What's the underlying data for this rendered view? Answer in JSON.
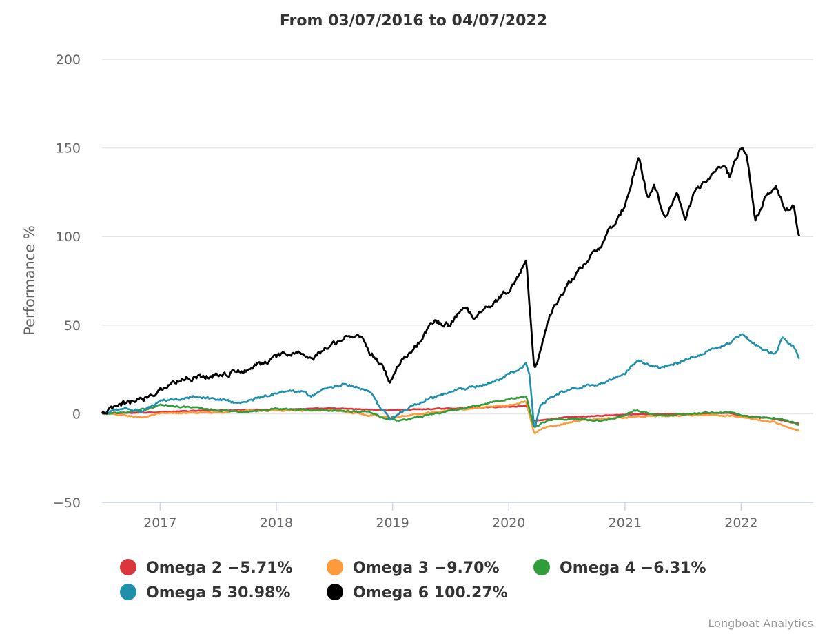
{
  "chart_data": {
    "type": "line",
    "title": "From 03/07/2016 to 04/07/2022",
    "ylabel": "Performance %",
    "xlabel": "",
    "ylim": [
      -50,
      200
    ],
    "xlim": [
      2016.5,
      2022.62
    ],
    "yticks": [
      -50,
      0,
      50,
      100,
      150,
      200
    ],
    "ytick_labels": [
      "−50",
      "0",
      "50",
      "100",
      "150",
      "200"
    ],
    "xticks": [
      2017,
      2018,
      2019,
      2020,
      2021,
      2022
    ],
    "xtick_labels": [
      "2017",
      "2018",
      "2019",
      "2020",
      "2021",
      "2022"
    ],
    "grid": "horizontal",
    "legend_position": "bottom",
    "credit": "Longboat Analytics",
    "series": [
      {
        "name": "Omega 2",
        "legend_label": "Omega 2 −5.71%",
        "color": "#d9363e",
        "points": [
          [
            2016.5,
            0
          ],
          [
            2017.0,
            1
          ],
          [
            2017.5,
            2
          ],
          [
            2018.0,
            2.5
          ],
          [
            2018.5,
            3
          ],
          [
            2018.95,
            2
          ],
          [
            2019.5,
            3
          ],
          [
            2020.0,
            4
          ],
          [
            2020.15,
            4.5
          ],
          [
            2020.22,
            -4
          ],
          [
            2020.5,
            -2
          ],
          [
            2021.0,
            -0.5
          ],
          [
            2021.5,
            0
          ],
          [
            2021.9,
            0.5
          ],
          [
            2022.0,
            -1
          ],
          [
            2022.3,
            -3
          ],
          [
            2022.5,
            -5.71
          ]
        ]
      },
      {
        "name": "Omega 3",
        "legend_label": "Omega 3 −9.70%",
        "color": "#fd9a3c",
        "points": [
          [
            2016.5,
            0
          ],
          [
            2016.7,
            -1
          ],
          [
            2016.85,
            -2
          ],
          [
            2017.0,
            0
          ],
          [
            2017.5,
            1
          ],
          [
            2018.0,
            2
          ],
          [
            2018.5,
            2
          ],
          [
            2018.95,
            -2
          ],
          [
            2019.1,
            -1
          ],
          [
            2019.5,
            2
          ],
          [
            2020.0,
            5
          ],
          [
            2020.15,
            7
          ],
          [
            2020.22,
            -11
          ],
          [
            2020.3,
            -8
          ],
          [
            2020.6,
            -4
          ],
          [
            2021.0,
            -2
          ],
          [
            2021.5,
            -1
          ],
          [
            2021.9,
            -1
          ],
          [
            2022.1,
            -3
          ],
          [
            2022.3,
            -5
          ],
          [
            2022.5,
            -9.7
          ]
        ]
      },
      {
        "name": "Omega 4",
        "legend_label": "Omega 4 −6.31%",
        "color": "#2f9e3a",
        "points": [
          [
            2016.5,
            0
          ],
          [
            2016.75,
            1
          ],
          [
            2016.9,
            3
          ],
          [
            2017.0,
            5
          ],
          [
            2017.2,
            4
          ],
          [
            2017.5,
            2
          ],
          [
            2017.8,
            1
          ],
          [
            2018.0,
            3
          ],
          [
            2018.3,
            2
          ],
          [
            2018.5,
            2
          ],
          [
            2018.8,
            1
          ],
          [
            2018.95,
            -3
          ],
          [
            2019.05,
            -4
          ],
          [
            2019.3,
            -1
          ],
          [
            2019.6,
            3
          ],
          [
            2019.9,
            7
          ],
          [
            2020.15,
            10
          ],
          [
            2020.22,
            -8
          ],
          [
            2020.35,
            -3
          ],
          [
            2020.6,
            -3
          ],
          [
            2020.8,
            -4
          ],
          [
            2021.0,
            -1
          ],
          [
            2021.1,
            2
          ],
          [
            2021.3,
            -1
          ],
          [
            2021.6,
            0
          ],
          [
            2021.9,
            1
          ],
          [
            2022.1,
            -2
          ],
          [
            2022.35,
            -3
          ],
          [
            2022.5,
            -6.31
          ]
        ]
      },
      {
        "name": "Omega 5",
        "legend_label": "Omega 5 30.98%",
        "color": "#1f8fab",
        "points": [
          [
            2016.5,
            0
          ],
          [
            2016.7,
            3
          ],
          [
            2016.85,
            1
          ],
          [
            2017.0,
            7
          ],
          [
            2017.3,
            10
          ],
          [
            2017.5,
            8
          ],
          [
            2017.7,
            6
          ],
          [
            2018.0,
            12
          ],
          [
            2018.2,
            13
          ],
          [
            2018.3,
            10
          ],
          [
            2018.45,
            15
          ],
          [
            2018.6,
            17
          ],
          [
            2018.8,
            13
          ],
          [
            2018.9,
            3
          ],
          [
            2018.98,
            -3
          ],
          [
            2019.1,
            2
          ],
          [
            2019.3,
            8
          ],
          [
            2019.6,
            14
          ],
          [
            2019.8,
            16
          ],
          [
            2020.0,
            22
          ],
          [
            2020.15,
            28
          ],
          [
            2020.18,
            22
          ],
          [
            2020.22,
            -8
          ],
          [
            2020.27,
            5
          ],
          [
            2020.4,
            11
          ],
          [
            2020.6,
            15
          ],
          [
            2020.8,
            17
          ],
          [
            2021.0,
            23
          ],
          [
            2021.1,
            30
          ],
          [
            2021.3,
            26
          ],
          [
            2021.5,
            30
          ],
          [
            2021.7,
            35
          ],
          [
            2021.9,
            40
          ],
          [
            2022.0,
            45
          ],
          [
            2022.1,
            40
          ],
          [
            2022.2,
            36
          ],
          [
            2022.3,
            34
          ],
          [
            2022.35,
            43
          ],
          [
            2022.45,
            38
          ],
          [
            2022.5,
            30.98
          ]
        ]
      },
      {
        "name": "Omega 6",
        "legend_label": "Omega 6 100.27%",
        "color": "#000000",
        "points": [
          [
            2016.5,
            0
          ],
          [
            2016.7,
            6
          ],
          [
            2016.85,
            8
          ],
          [
            2017.0,
            14
          ],
          [
            2017.2,
            20
          ],
          [
            2017.5,
            22
          ],
          [
            2017.7,
            24
          ],
          [
            2017.9,
            29
          ],
          [
            2018.0,
            32
          ],
          [
            2018.2,
            35
          ],
          [
            2018.3,
            30
          ],
          [
            2018.45,
            38
          ],
          [
            2018.6,
            44
          ],
          [
            2018.75,
            43
          ],
          [
            2018.8,
            35
          ],
          [
            2018.9,
            28
          ],
          [
            2018.98,
            18
          ],
          [
            2019.05,
            28
          ],
          [
            2019.2,
            38
          ],
          [
            2019.35,
            52
          ],
          [
            2019.5,
            50
          ],
          [
            2019.6,
            60
          ],
          [
            2019.7,
            55
          ],
          [
            2019.85,
            62
          ],
          [
            2020.0,
            70
          ],
          [
            2020.1,
            80
          ],
          [
            2020.15,
            88
          ],
          [
            2020.18,
            60
          ],
          [
            2020.22,
            25
          ],
          [
            2020.27,
            35
          ],
          [
            2020.35,
            55
          ],
          [
            2020.45,
            68
          ],
          [
            2020.6,
            80
          ],
          [
            2020.7,
            88
          ],
          [
            2020.8,
            95
          ],
          [
            2020.88,
            105
          ],
          [
            2020.95,
            110
          ],
          [
            2021.0,
            118
          ],
          [
            2021.12,
            145
          ],
          [
            2021.2,
            120
          ],
          [
            2021.25,
            130
          ],
          [
            2021.35,
            110
          ],
          [
            2021.45,
            125
          ],
          [
            2021.52,
            110
          ],
          [
            2021.6,
            125
          ],
          [
            2021.75,
            135
          ],
          [
            2021.85,
            140
          ],
          [
            2021.9,
            134
          ],
          [
            2022.0,
            150
          ],
          [
            2022.05,
            145
          ],
          [
            2022.12,
            110
          ],
          [
            2022.2,
            120
          ],
          [
            2022.3,
            128
          ],
          [
            2022.38,
            115
          ],
          [
            2022.45,
            118
          ],
          [
            2022.5,
            100.27
          ]
        ]
      }
    ]
  }
}
